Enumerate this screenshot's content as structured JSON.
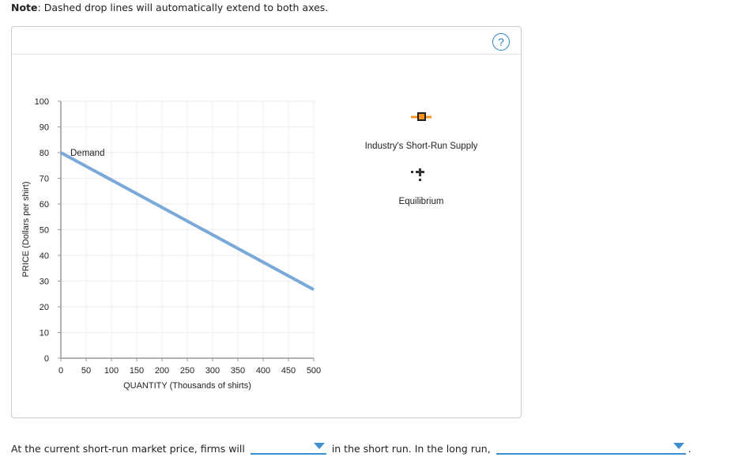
{
  "note": {
    "label": "Note",
    "text": ": Dashed drop lines will automatically extend to both axes."
  },
  "help": {
    "label": "?"
  },
  "legend": {
    "supply": {
      "label": "Industry's Short-Run Supply",
      "color": "#f7941d",
      "icon": "orange-square-line-icon"
    },
    "equilibrium": {
      "label": "Equilibrium",
      "color": "#333333",
      "icon": "plus-dotted-icon"
    }
  },
  "chart_data": {
    "type": "line",
    "xlabel": "QUANTITY (Thousands of shirts)",
    "ylabel": "PRICE (Dollars per shirt)",
    "xlim": [
      0,
      500
    ],
    "ylim": [
      0,
      100
    ],
    "xticks": [
      0,
      50,
      100,
      150,
      200,
      250,
      300,
      350,
      400,
      450,
      500
    ],
    "yticks": [
      0,
      10,
      20,
      30,
      40,
      50,
      60,
      70,
      80,
      90,
      100
    ],
    "grid": true,
    "series": [
      {
        "name": "Demand",
        "color": "#7aa9d9",
        "x": [
          0,
          500
        ],
        "y": [
          80,
          26.7
        ]
      }
    ]
  },
  "question": {
    "part1": "At the current short-run market price, firms will",
    "part2": "in the short run. In the long run,",
    "part3": ".",
    "dropdown1": "",
    "dropdown2": ""
  }
}
